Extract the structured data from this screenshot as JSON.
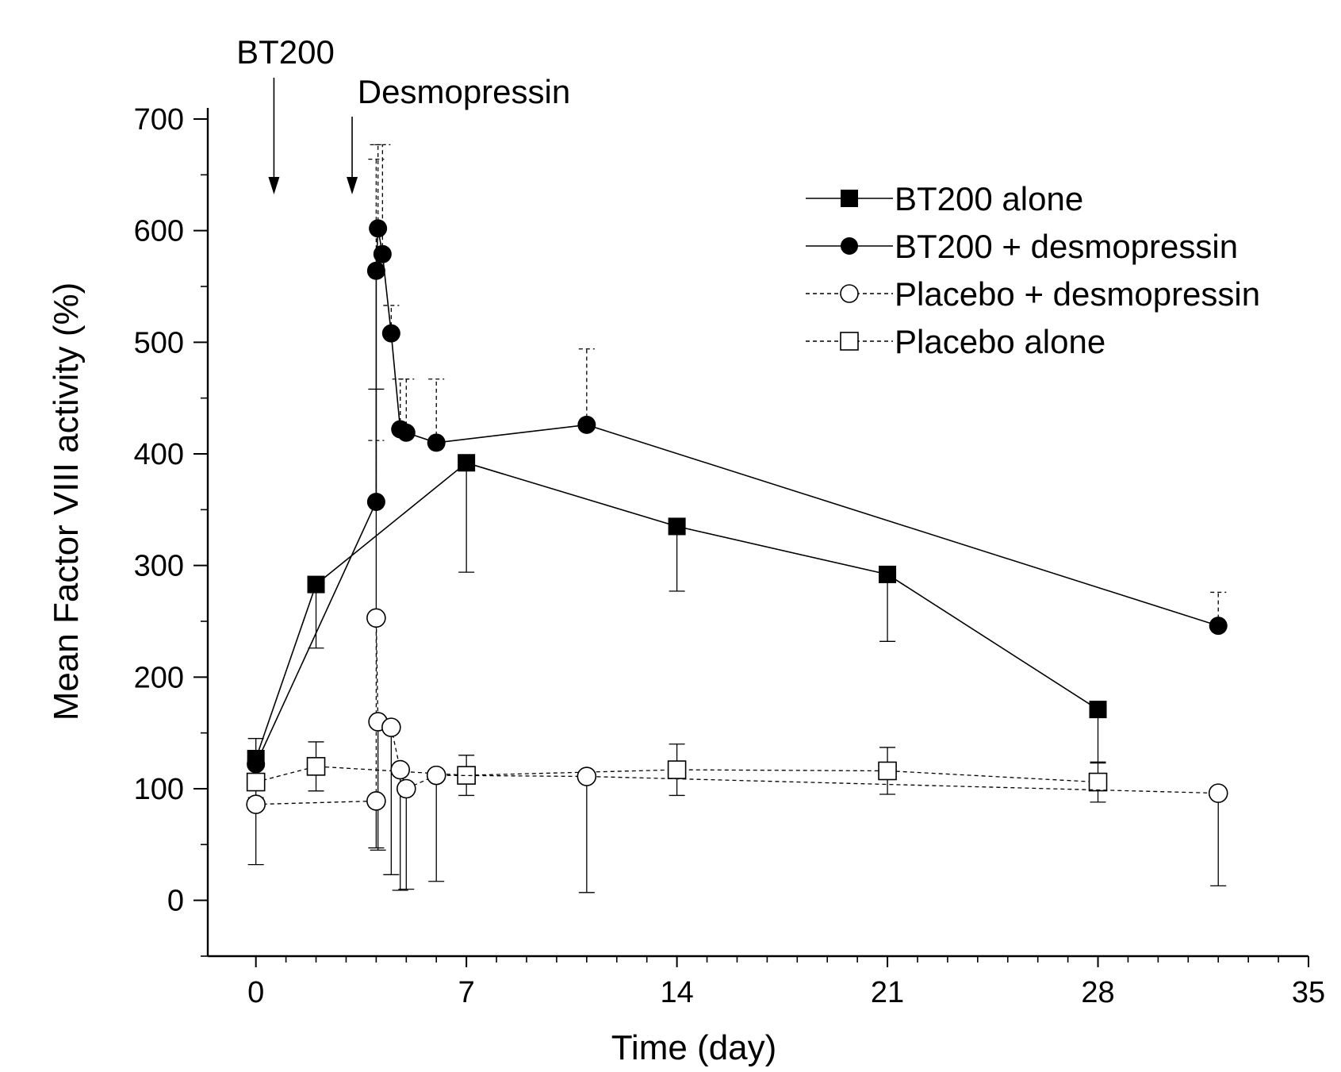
{
  "chart_data": {
    "type": "line",
    "xlabel": "Time (day)",
    "ylabel": "Mean Factor VIII activity (%)",
    "xlim": [
      -1.6,
      35
    ],
    "ylim": [
      -50,
      700
    ],
    "x_ticks": [
      0,
      7,
      14,
      21,
      28,
      35
    ],
    "y_ticks": [
      0,
      100,
      200,
      300,
      400,
      500,
      600,
      700
    ],
    "x_tick_labels": [
      "0",
      "7",
      "14",
      "21",
      "28",
      "35"
    ],
    "y_tick_labels": [
      "0",
      "100",
      "200",
      "300",
      "400",
      "500",
      "600",
      "700"
    ],
    "grid": false,
    "legend_position": "top-right",
    "annotations": [
      {
        "text": "BT200",
        "x": 0.6
      },
      {
        "text": "Desmopressin",
        "x": 3.2
      }
    ],
    "series": [
      {
        "name": "BT200 alone",
        "marker": "square-filled",
        "line": "solid",
        "x": [
          0,
          2,
          7,
          14,
          21,
          28
        ],
        "y": [
          127,
          283,
          392,
          335,
          292,
          171
        ],
        "error": [
          18,
          57,
          98,
          58,
          60,
          48
        ],
        "error_direction": [
          1,
          -1,
          -1,
          -1,
          -1,
          -1
        ]
      },
      {
        "name": "BT200 + desmopressin",
        "marker": "circle-filled",
        "line": "solid",
        "x": [
          0,
          4,
          4,
          4.06,
          4.21,
          4.5,
          4.8,
          5,
          6,
          11,
          32
        ],
        "y": [
          122,
          357,
          564,
          602,
          579,
          508,
          422,
          419,
          410,
          426,
          246
        ],
        "error": [
          0,
          55,
          100,
          75,
          98,
          25,
          45,
          48,
          57,
          68,
          30
        ],
        "error_direction": [
          1,
          1,
          1,
          1,
          1,
          1,
          1,
          1,
          1,
          1,
          1
        ]
      },
      {
        "name": "Placebo + desmopressin",
        "marker": "circle-open",
        "line": "dashed",
        "x": [
          0,
          4,
          4,
          4.06,
          4.5,
          4.8,
          5,
          6,
          11,
          32
        ],
        "y": [
          86,
          89,
          253,
          160,
          155,
          117,
          100,
          112,
          111,
          96
        ],
        "error": [
          54,
          42,
          205,
          115,
          132,
          108,
          90,
          95,
          104,
          83
        ],
        "error_direction": [
          -1,
          -1,
          1,
          -1,
          -1,
          -1,
          -1,
          -1,
          -1,
          -1
        ]
      },
      {
        "name": "Placebo alone",
        "marker": "square-open",
        "line": "dashed",
        "x": [
          0,
          2,
          7,
          14,
          21,
          28
        ],
        "y": [
          106,
          120,
          112,
          117,
          116,
          106
        ],
        "error": [
          14,
          22,
          18,
          23,
          21,
          18
        ],
        "error_direction": [
          0,
          0,
          0,
          0,
          0,
          0
        ]
      }
    ]
  }
}
